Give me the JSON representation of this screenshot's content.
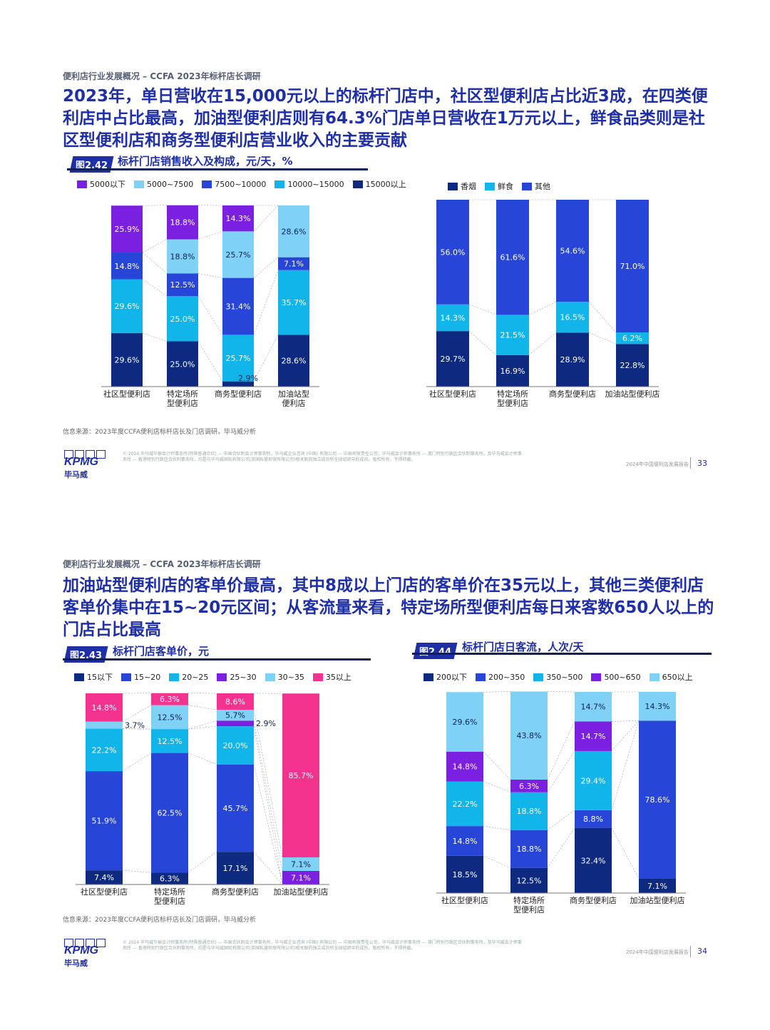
{
  "page1": {
    "section_tag": "便利店行业发展概况 – CCFA 2023年标杆店长调研",
    "headline": "2023年，单日营收在15,000元以上的标杆门店中，社区型便利店占比近3成，在四类便利店中占比最高，加油型便利店则有64.3%门店单日营收在1万元以上，鲜食品类则是社区型便利店和商务型便利店营业收入的主要贡献",
    "figure_number": "图2.42",
    "figure_title": "标杆门店销售收入及构成，元/天，%",
    "source": "信息来源：2023年度CCFA便利店标杆店长及门店调研，毕马威分析",
    "footer_legal": "© 2024 毕马威华振会计师事务所(特殊普通合伙) — 中国合伙制会计师事务所，毕马威企业咨询 (中国) 有限公司 — 中国有限责任公司，毕马威会计师事务所 — 澳门特别行政区合伙制事务所，及毕马威会计师事务所 — 香港特别行政区合伙制事务所，均是与毕马威国际有限公司(英国私营担保有限公司)相关联的独立成员所全球组织中的成员。版权所有，不得转载。",
    "footer_report": "2024年中国便利店发展报告",
    "page_number": "33"
  },
  "page2": {
    "section_tag": "便利店行业发展概况 – CCFA 2023年标杆店长调研",
    "headline": "加油站型便利店的客单价最高，其中8成以上门店的客单价在35元以上，其他三类便利店客单价集中在15~20元区间；从客流量来看，特定场所型便利店每日来客数650人以上的门店占比最高",
    "figure1_number": "图2.43",
    "figure1_title": "标杆门店客单价，元",
    "figure2_number": "图2.44",
    "figure2_title": "标杆门店日客流，人次/天",
    "source": "信息来源：2023年度CCFA便利店标杆店长及门店调研，毕马威分析",
    "footer_legal": "© 2024 毕马威华振会计师事务所(特殊普通合伙) — 中国合伙制会计师事务所，毕马威企业咨询 (中国) 有限公司 — 中国有限责任公司，毕马威会计师事务所 — 澳门特别行政区合伙制事务所，及毕马威会计师事务所 — 香港特别行政区合伙制事务所，均是与毕马威国际有限公司(英国私营担保有限公司)相关联的独立成员所全球组织中的成员。版权所有，不得转载。",
    "footer_report": "2024年中国便利店发展报告",
    "page_number": "34"
  },
  "brand": {
    "logo": "KPMG",
    "logo_cn": "毕马威",
    "accent": "#1e2fa8"
  },
  "chart_data": [
    {
      "id": "c242a",
      "type": "bar",
      "stacked": true,
      "categories": [
        "社区型便利店",
        "特定场所\n型便利店",
        "商务型便利店",
        "加油站型\n便利店"
      ],
      "ylim": [
        0,
        100
      ],
      "series": [
        {
          "name": "15000以上",
          "color": "#0d2a80",
          "values": [
            29.6,
            25.0,
            2.9,
            28.6
          ],
          "labels": [
            "29.6%",
            "25.0%",
            "2.9%",
            "28.6%"
          ]
        },
        {
          "name": "10000~15000",
          "color": "#12b5ea",
          "values": [
            29.6,
            25.0,
            25.7,
            35.7
          ],
          "labels": [
            "29.6%",
            "25.0%",
            "25.7%",
            "35.7%"
          ]
        },
        {
          "name": "7500~10000",
          "color": "#2746d8",
          "values": [
            14.8,
            12.5,
            31.4,
            7.1
          ],
          "labels": [
            "14.8%",
            "12.5%",
            "31.4%",
            "7.1%"
          ]
        },
        {
          "name": "5000~7500",
          "color": "#7fd2f6",
          "values": [
            0,
            18.8,
            25.7,
            28.6
          ],
          "labels": [
            "",
            "18.8%",
            "25.7%",
            "28.6%"
          ]
        },
        {
          "name": "5000以下",
          "color": "#7b1fe0",
          "values": [
            25.9,
            18.8,
            14.3,
            0
          ],
          "labels": [
            "25.9%",
            "18.8%",
            "14.3%",
            ""
          ]
        }
      ],
      "legend_order": [
        "5000以下",
        "5000~7500",
        "7500~10000",
        "10000~15000",
        "15000以上"
      ]
    },
    {
      "id": "c242b",
      "type": "bar",
      "stacked": true,
      "categories": [
        "社区型便利店",
        "特定场所\n型便利店",
        "商务型便利店",
        "加油站型便利店"
      ],
      "ylim": [
        0,
        100
      ],
      "series": [
        {
          "name": "香烟",
          "color": "#0d2a80",
          "values": [
            29.7,
            16.9,
            28.9,
            22.8
          ],
          "labels": [
            "29.7%",
            "16.9%",
            "28.9%",
            "22.8%"
          ]
        },
        {
          "name": "鲜食",
          "color": "#12b5ea",
          "values": [
            14.3,
            21.5,
            16.5,
            6.2
          ],
          "labels": [
            "14.3%",
            "21.5%",
            "16.5%",
            "6.2%"
          ]
        },
        {
          "name": "其他",
          "color": "#2746d8",
          "values": [
            56.0,
            61.6,
            54.6,
            71.0
          ],
          "labels": [
            "56.0%",
            "61.6%",
            "54.6%",
            "71.0%"
          ]
        }
      ],
      "legend_order": [
        "香烟",
        "鲜食",
        "其他"
      ]
    },
    {
      "id": "c243",
      "type": "bar",
      "stacked": true,
      "categories": [
        "社区型便利店",
        "特定场所\n型便利店",
        "商务型便利店",
        "加油站型便利店"
      ],
      "ylim": [
        0,
        100
      ],
      "series": [
        {
          "name": "15以下",
          "color": "#0d2a80",
          "values": [
            7.4,
            6.3,
            17.1,
            0
          ],
          "labels": [
            "7.4%",
            "6.3%",
            "17.1%",
            ""
          ]
        },
        {
          "name": "15~20",
          "color": "#2746d8",
          "values": [
            51.9,
            62.5,
            45.7,
            0
          ],
          "labels": [
            "51.9%",
            "62.5%",
            "45.7%",
            ""
          ]
        },
        {
          "name": "20~25",
          "color": "#12b5ea",
          "values": [
            22.2,
            12.5,
            20.0,
            0
          ],
          "labels": [
            "22.2%",
            "12.5%",
            "20.0%",
            ""
          ]
        },
        {
          "name": "25~30",
          "color": "#7b1fe0",
          "values": [
            0,
            0,
            2.9,
            7.1
          ],
          "labels": [
            "",
            "",
            "2.9%",
            "7.1%"
          ]
        },
        {
          "name": "30~35",
          "color": "#7fd2f6",
          "values": [
            3.7,
            12.5,
            5.7,
            7.1
          ],
          "labels": [
            "3.7%",
            "12.5%",
            "5.7%",
            "7.1%"
          ]
        },
        {
          "name": "35以上",
          "color": "#f4338f",
          "values": [
            14.8,
            6.3,
            8.6,
            85.7
          ],
          "labels": [
            "14.8%",
            "6.3%",
            "8.6%",
            "85.7%"
          ]
        }
      ],
      "legend_order": [
        "15以下",
        "15~20",
        "20~25",
        "25~30",
        "30~35",
        "35以上"
      ]
    },
    {
      "id": "c244",
      "type": "bar",
      "stacked": true,
      "categories": [
        "社区型便利店",
        "特定场所\n型便利店",
        "商务型便利店",
        "加油站型便利店"
      ],
      "ylim": [
        0,
        100
      ],
      "series": [
        {
          "name": "200以下",
          "color": "#0d2a80",
          "values": [
            18.5,
            12.5,
            32.4,
            7.1
          ],
          "labels": [
            "18.5%",
            "12.5%",
            "32.4%",
            "7.1%"
          ]
        },
        {
          "name": "200~350",
          "color": "#2746d8",
          "values": [
            14.8,
            18.8,
            8.8,
            78.6
          ],
          "labels": [
            "14.8%",
            "18.8%",
            "8.8%",
            "78.6%"
          ]
        },
        {
          "name": "350~500",
          "color": "#12b5ea",
          "values": [
            22.2,
            18.8,
            29.4,
            0
          ],
          "labels": [
            "22.2%",
            "18.8%",
            "29.4%",
            ""
          ]
        },
        {
          "name": "500~650",
          "color": "#7b1fe0",
          "values": [
            14.8,
            6.3,
            14.7,
            0
          ],
          "labels": [
            "14.8%",
            "6.3%",
            "14.7%",
            ""
          ]
        },
        {
          "name": "650以上",
          "color": "#7fd2f6",
          "values": [
            29.6,
            43.8,
            14.7,
            14.3
          ],
          "labels": [
            "29.6%",
            "43.8%",
            "14.7%",
            "14.3%"
          ]
        }
      ],
      "legend_order": [
        "200以下",
        "200~350",
        "350~500",
        "500~650",
        "650以上"
      ]
    }
  ]
}
